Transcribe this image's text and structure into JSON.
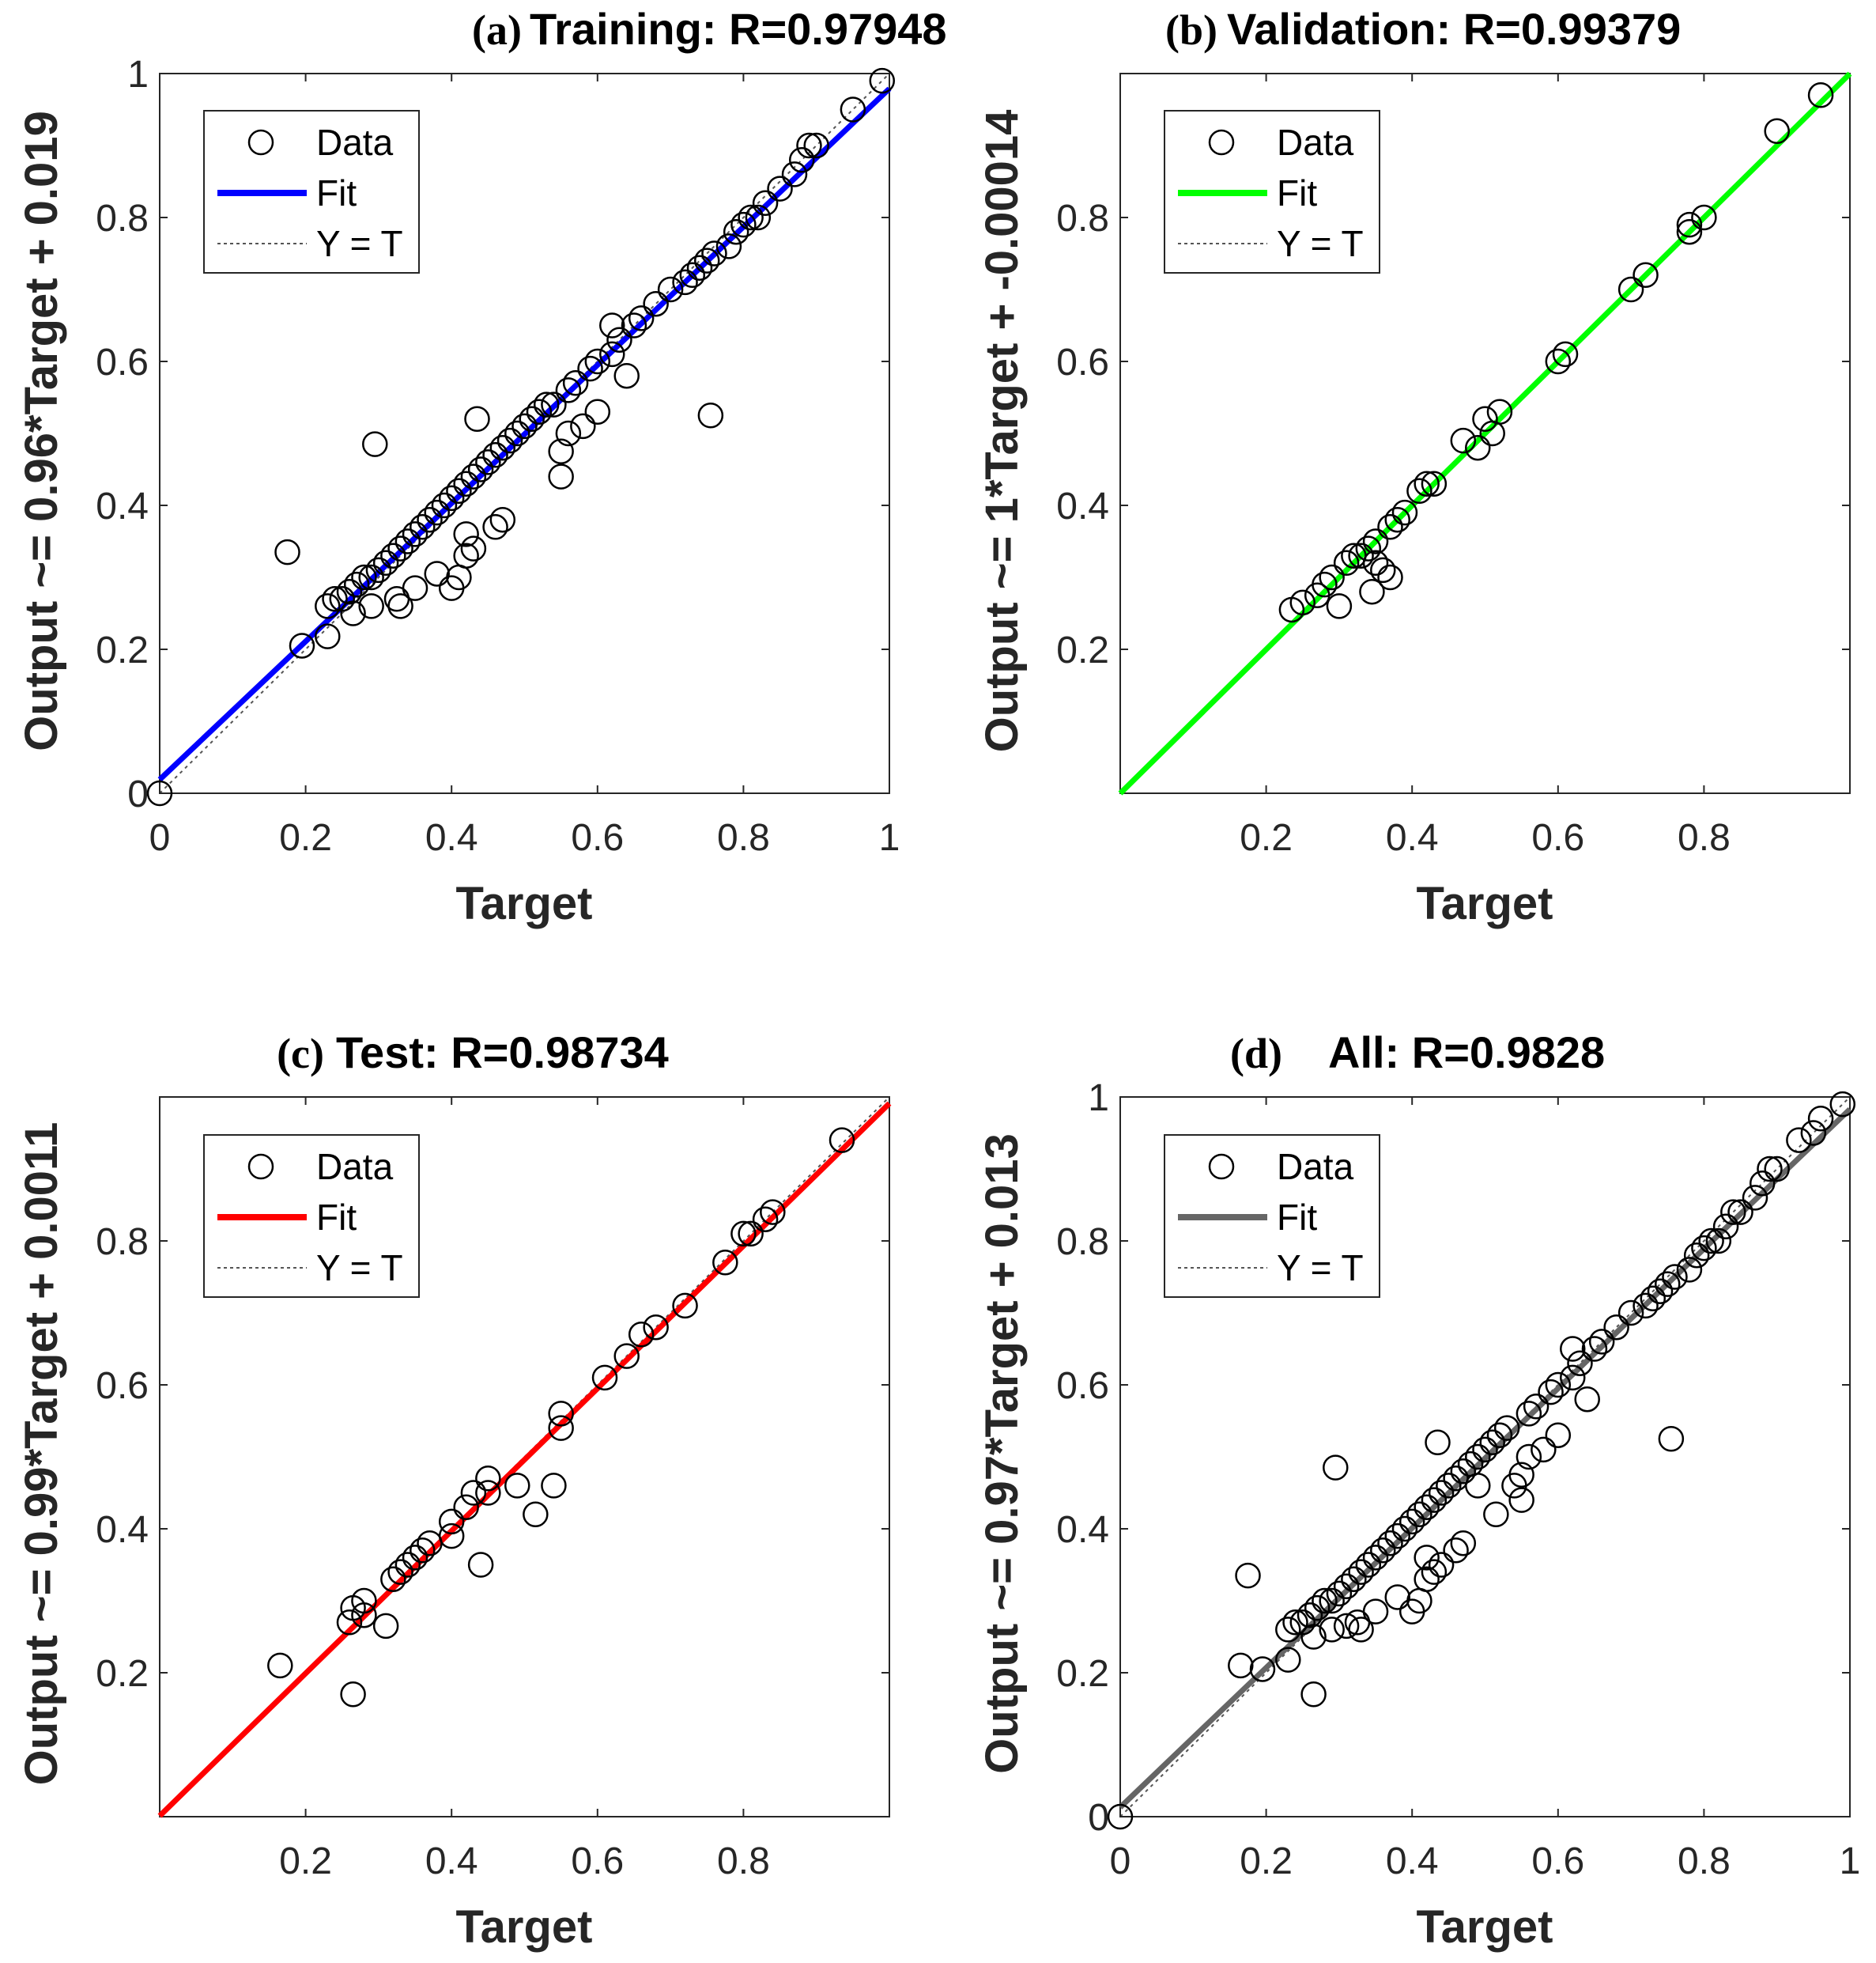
{
  "chart_data": [
    {
      "type": "scatter",
      "panel": "(a)",
      "title": "Training: R=0.97948",
      "xlabel": "Target",
      "ylabel": "Output ~= 0.96*Target + 0.019",
      "xlim": [
        0,
        1
      ],
      "ylim": [
        0,
        1
      ],
      "xticks": [
        "0",
        "0.2",
        "0.4",
        "0.6",
        "0.8",
        "1"
      ],
      "yticks": [
        "0",
        "0.2",
        "0.4",
        "0.6",
        "0.8",
        "1"
      ],
      "fit": {
        "slope": 0.96,
        "intercept": 0.019,
        "color": "#0000ff"
      },
      "legend": {
        "data": "Data",
        "fit": "Fit",
        "ident": "Y = T"
      },
      "points": [
        [
          0,
          0
        ],
        [
          0.175,
          0.335
        ],
        [
          0.195,
          0.205
        ],
        [
          0.23,
          0.218
        ],
        [
          0.23,
          0.26
        ],
        [
          0.24,
          0.27
        ],
        [
          0.25,
          0.27
        ],
        [
          0.26,
          0.28
        ],
        [
          0.265,
          0.25
        ],
        [
          0.27,
          0.29
        ],
        [
          0.28,
          0.3
        ],
        [
          0.29,
          0.3
        ],
        [
          0.29,
          0.26
        ],
        [
          0.295,
          0.485
        ],
        [
          0.3,
          0.31
        ],
        [
          0.31,
          0.32
        ],
        [
          0.32,
          0.33
        ],
        [
          0.325,
          0.27
        ],
        [
          0.33,
          0.26
        ],
        [
          0.33,
          0.34
        ],
        [
          0.34,
          0.35
        ],
        [
          0.35,
          0.36
        ],
        [
          0.35,
          0.285
        ],
        [
          0.36,
          0.37
        ],
        [
          0.37,
          0.38
        ],
        [
          0.38,
          0.39
        ],
        [
          0.38,
          0.305
        ],
        [
          0.39,
          0.4
        ],
        [
          0.4,
          0.41
        ],
        [
          0.4,
          0.285
        ],
        [
          0.41,
          0.42
        ],
        [
          0.41,
          0.3
        ],
        [
          0.42,
          0.43
        ],
        [
          0.42,
          0.36
        ],
        [
          0.42,
          0.33
        ],
        [
          0.43,
          0.34
        ],
        [
          0.43,
          0.44
        ],
        [
          0.435,
          0.52
        ],
        [
          0.44,
          0.45
        ],
        [
          0.45,
          0.46
        ],
        [
          0.46,
          0.47
        ],
        [
          0.46,
          0.37
        ],
        [
          0.47,
          0.38
        ],
        [
          0.47,
          0.48
        ],
        [
          0.48,
          0.49
        ],
        [
          0.49,
          0.5
        ],
        [
          0.5,
          0.51
        ],
        [
          0.51,
          0.52
        ],
        [
          0.52,
          0.53
        ],
        [
          0.53,
          0.54
        ],
        [
          0.54,
          0.54
        ],
        [
          0.55,
          0.44
        ],
        [
          0.55,
          0.475
        ],
        [
          0.56,
          0.5
        ],
        [
          0.56,
          0.56
        ],
        [
          0.57,
          0.57
        ],
        [
          0.58,
          0.51
        ],
        [
          0.59,
          0.59
        ],
        [
          0.6,
          0.6
        ],
        [
          0.6,
          0.53
        ],
        [
          0.62,
          0.61
        ],
        [
          0.62,
          0.65
        ],
        [
          0.63,
          0.63
        ],
        [
          0.64,
          0.58
        ],
        [
          0.65,
          0.65
        ],
        [
          0.66,
          0.66
        ],
        [
          0.68,
          0.68
        ],
        [
          0.7,
          0.7
        ],
        [
          0.72,
          0.71
        ],
        [
          0.73,
          0.72
        ],
        [
          0.74,
          0.73
        ],
        [
          0.75,
          0.74
        ],
        [
          0.755,
          0.525
        ],
        [
          0.76,
          0.75
        ],
        [
          0.78,
          0.76
        ],
        [
          0.79,
          0.78
        ],
        [
          0.8,
          0.79
        ],
        [
          0.81,
          0.8
        ],
        [
          0.82,
          0.8
        ],
        [
          0.83,
          0.82
        ],
        [
          0.85,
          0.84
        ],
        [
          0.87,
          0.86
        ],
        [
          0.88,
          0.88
        ],
        [
          0.89,
          0.9
        ],
        [
          0.9,
          0.9
        ],
        [
          0.95,
          0.95
        ],
        [
          0.99,
          0.99
        ]
      ]
    },
    {
      "type": "scatter",
      "panel": "(b)",
      "title": "Validation: R=0.99379",
      "xlabel": "Target",
      "ylabel": "Output ~= 1*Target + -0.00014",
      "xlim": [
        0,
        1
      ],
      "ylim": [
        0,
        1
      ],
      "xticks": [
        "0.2",
        "0.4",
        "0.6",
        "0.8"
      ],
      "yticks": [
        "0.2",
        "0.4",
        "0.6",
        "0.8"
      ],
      "fit": {
        "slope": 1,
        "intercept": -0.00014,
        "color": "#00ff00"
      },
      "legend": {
        "data": "Data",
        "fit": "Fit",
        "ident": "Y = T"
      },
      "points": [
        [
          0.235,
          0.255
        ],
        [
          0.25,
          0.265
        ],
        [
          0.27,
          0.275
        ],
        [
          0.28,
          0.29
        ],
        [
          0.29,
          0.3
        ],
        [
          0.3,
          0.26
        ],
        [
          0.31,
          0.32
        ],
        [
          0.32,
          0.33
        ],
        [
          0.33,
          0.33
        ],
        [
          0.34,
          0.34
        ],
        [
          0.345,
          0.28
        ],
        [
          0.35,
          0.35
        ],
        [
          0.35,
          0.32
        ],
        [
          0.36,
          0.31
        ],
        [
          0.37,
          0.3
        ],
        [
          0.37,
          0.37
        ],
        [
          0.38,
          0.38
        ],
        [
          0.39,
          0.39
        ],
        [
          0.41,
          0.42
        ],
        [
          0.42,
          0.43
        ],
        [
          0.43,
          0.43
        ],
        [
          0.47,
          0.49
        ],
        [
          0.49,
          0.48
        ],
        [
          0.5,
          0.52
        ],
        [
          0.51,
          0.5
        ],
        [
          0.52,
          0.53
        ],
        [
          0.6,
          0.6
        ],
        [
          0.61,
          0.61
        ],
        [
          0.7,
          0.7
        ],
        [
          0.72,
          0.72
        ],
        [
          0.78,
          0.78
        ],
        [
          0.78,
          0.79
        ],
        [
          0.8,
          0.8
        ],
        [
          0.9,
          0.92
        ],
        [
          0.96,
          0.97
        ]
      ]
    },
    {
      "type": "scatter",
      "panel": "(c)",
      "title": "Test: R=0.98734",
      "xlabel": "Target",
      "ylabel": "Output ~= 0.99*Target + 0.0011",
      "xlim": [
        0,
        1
      ],
      "ylim": [
        0,
        1
      ],
      "xticks": [
        "0.2",
        "0.4",
        "0.6",
        "0.8"
      ],
      "yticks": [
        "0.2",
        "0.4",
        "0.6",
        "0.8"
      ],
      "fit": {
        "slope": 0.99,
        "intercept": 0.0011,
        "color": "#ff0000"
      },
      "legend": {
        "data": "Data",
        "fit": "Fit",
        "ident": "Y = T"
      },
      "points": [
        [
          0.165,
          0.21
        ],
        [
          0.26,
          0.27
        ],
        [
          0.265,
          0.29
        ],
        [
          0.265,
          0.17
        ],
        [
          0.28,
          0.28
        ],
        [
          0.28,
          0.3
        ],
        [
          0.31,
          0.265
        ],
        [
          0.32,
          0.33
        ],
        [
          0.33,
          0.34
        ],
        [
          0.34,
          0.35
        ],
        [
          0.35,
          0.36
        ],
        [
          0.36,
          0.37
        ],
        [
          0.37,
          0.38
        ],
        [
          0.4,
          0.39
        ],
        [
          0.4,
          0.41
        ],
        [
          0.42,
          0.43
        ],
        [
          0.43,
          0.45
        ],
        [
          0.44,
          0.35
        ],
        [
          0.45,
          0.47
        ],
        [
          0.45,
          0.45
        ],
        [
          0.49,
          0.46
        ],
        [
          0.515,
          0.42
        ],
        [
          0.54,
          0.46
        ],
        [
          0.55,
          0.54
        ],
        [
          0.55,
          0.56
        ],
        [
          0.61,
          0.61
        ],
        [
          0.64,
          0.64
        ],
        [
          0.66,
          0.67
        ],
        [
          0.68,
          0.68
        ],
        [
          0.72,
          0.71
        ],
        [
          0.775,
          0.77
        ],
        [
          0.8,
          0.81
        ],
        [
          0.81,
          0.81
        ],
        [
          0.83,
          0.83
        ],
        [
          0.84,
          0.84
        ],
        [
          0.935,
          0.94
        ]
      ]
    },
    {
      "type": "scatter",
      "panel": "(d)",
      "title": "All: R=0.9828",
      "xlabel": "Target",
      "ylabel": "Output ~= 0.97*Target + 0.013",
      "xlim": [
        0,
        1
      ],
      "ylim": [
        0,
        1
      ],
      "xticks": [
        "0",
        "0.2",
        "0.4",
        "0.6",
        "0.8",
        "1"
      ],
      "yticks": [
        "0",
        "0.2",
        "0.4",
        "0.6",
        "0.8",
        "1"
      ],
      "fit": {
        "slope": 0.97,
        "intercept": 0.013,
        "color": "#666666"
      },
      "legend": {
        "data": "Data",
        "fit": "Fit",
        "ident": "Y = T"
      },
      "points": [
        [
          0,
          0
        ],
        [
          0.165,
          0.21
        ],
        [
          0.175,
          0.335
        ],
        [
          0.195,
          0.205
        ],
        [
          0.23,
          0.218
        ],
        [
          0.23,
          0.26
        ],
        [
          0.24,
          0.27
        ],
        [
          0.25,
          0.27
        ],
        [
          0.26,
          0.28
        ],
        [
          0.265,
          0.17
        ],
        [
          0.265,
          0.25
        ],
        [
          0.27,
          0.29
        ],
        [
          0.28,
          0.3
        ],
        [
          0.29,
          0.3
        ],
        [
          0.29,
          0.26
        ],
        [
          0.295,
          0.485
        ],
        [
          0.3,
          0.31
        ],
        [
          0.31,
          0.265
        ],
        [
          0.31,
          0.32
        ],
        [
          0.32,
          0.33
        ],
        [
          0.325,
          0.27
        ],
        [
          0.33,
          0.26
        ],
        [
          0.33,
          0.34
        ],
        [
          0.34,
          0.35
        ],
        [
          0.35,
          0.36
        ],
        [
          0.35,
          0.285
        ],
        [
          0.36,
          0.37
        ],
        [
          0.37,
          0.38
        ],
        [
          0.38,
          0.39
        ],
        [
          0.38,
          0.305
        ],
        [
          0.39,
          0.4
        ],
        [
          0.4,
          0.41
        ],
        [
          0.4,
          0.285
        ],
        [
          0.41,
          0.42
        ],
        [
          0.41,
          0.3
        ],
        [
          0.42,
          0.43
        ],
        [
          0.42,
          0.36
        ],
        [
          0.42,
          0.33
        ],
        [
          0.43,
          0.34
        ],
        [
          0.43,
          0.44
        ],
        [
          0.435,
          0.52
        ],
        [
          0.44,
          0.45
        ],
        [
          0.44,
          0.35
        ],
        [
          0.45,
          0.46
        ],
        [
          0.46,
          0.47
        ],
        [
          0.46,
          0.37
        ],
        [
          0.47,
          0.38
        ],
        [
          0.47,
          0.48
        ],
        [
          0.48,
          0.49
        ],
        [
          0.49,
          0.5
        ],
        [
          0.49,
          0.46
        ],
        [
          0.5,
          0.51
        ],
        [
          0.51,
          0.52
        ],
        [
          0.515,
          0.42
        ],
        [
          0.52,
          0.53
        ],
        [
          0.53,
          0.54
        ],
        [
          0.54,
          0.46
        ],
        [
          0.55,
          0.44
        ],
        [
          0.55,
          0.475
        ],
        [
          0.56,
          0.5
        ],
        [
          0.56,
          0.56
        ],
        [
          0.57,
          0.57
        ],
        [
          0.58,
          0.51
        ],
        [
          0.59,
          0.59
        ],
        [
          0.6,
          0.6
        ],
        [
          0.6,
          0.53
        ],
        [
          0.62,
          0.61
        ],
        [
          0.62,
          0.65
        ],
        [
          0.63,
          0.63
        ],
        [
          0.64,
          0.58
        ],
        [
          0.65,
          0.65
        ],
        [
          0.66,
          0.66
        ],
        [
          0.68,
          0.68
        ],
        [
          0.7,
          0.7
        ],
        [
          0.72,
          0.71
        ],
        [
          0.73,
          0.72
        ],
        [
          0.74,
          0.73
        ],
        [
          0.75,
          0.74
        ],
        [
          0.755,
          0.525
        ],
        [
          0.76,
          0.75
        ],
        [
          0.78,
          0.76
        ],
        [
          0.79,
          0.78
        ],
        [
          0.8,
          0.79
        ],
        [
          0.81,
          0.8
        ],
        [
          0.82,
          0.8
        ],
        [
          0.83,
          0.82
        ],
        [
          0.84,
          0.84
        ],
        [
          0.85,
          0.84
        ],
        [
          0.87,
          0.86
        ],
        [
          0.88,
          0.88
        ],
        [
          0.89,
          0.9
        ],
        [
          0.9,
          0.9
        ],
        [
          0.93,
          0.94
        ],
        [
          0.95,
          0.95
        ],
        [
          0.96,
          0.97
        ],
        [
          0.99,
          0.99
        ]
      ]
    }
  ]
}
